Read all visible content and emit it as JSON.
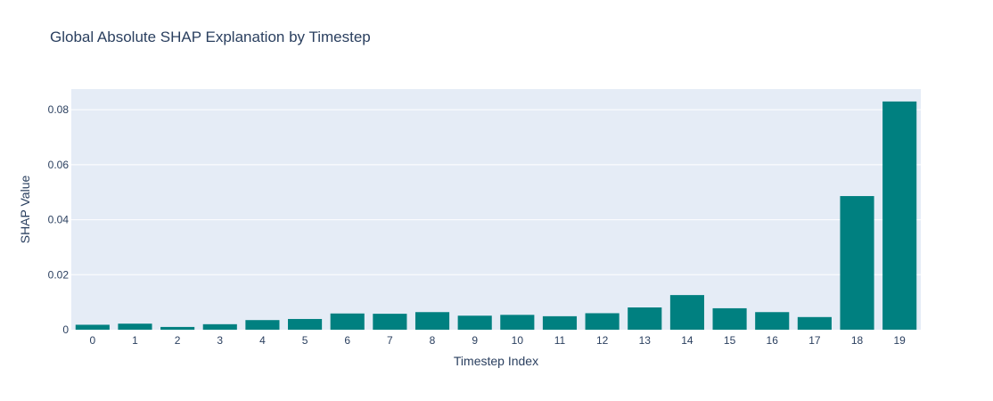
{
  "chart_data": {
    "type": "bar",
    "title": "Global Absolute SHAP Explanation by Timestep",
    "xlabel": "Timestep Index",
    "ylabel": "SHAP Value",
    "categories": [
      "0",
      "1",
      "2",
      "3",
      "4",
      "5",
      "6",
      "7",
      "8",
      "9",
      "10",
      "11",
      "12",
      "13",
      "14",
      "15",
      "16",
      "17",
      "18",
      "19"
    ],
    "values": [
      0.0018,
      0.0022,
      0.001,
      0.002,
      0.0035,
      0.0039,
      0.0059,
      0.0058,
      0.0064,
      0.0051,
      0.0054,
      0.0049,
      0.006,
      0.0081,
      0.0126,
      0.0078,
      0.0064,
      0.0046,
      0.0486,
      0.083
    ],
    "ylim": [
      0,
      0.0875
    ],
    "yticks": [
      0,
      0.02,
      0.04,
      0.06,
      0.08
    ],
    "ytick_labels": [
      "0",
      "0.02",
      "0.04",
      "0.06",
      "0.08"
    ],
    "grid": true,
    "bar_color": "#008080",
    "plot_bgcolor": "#e5ecf6",
    "grid_color": "#ffffff",
    "text_color": "#2a3f5f"
  }
}
